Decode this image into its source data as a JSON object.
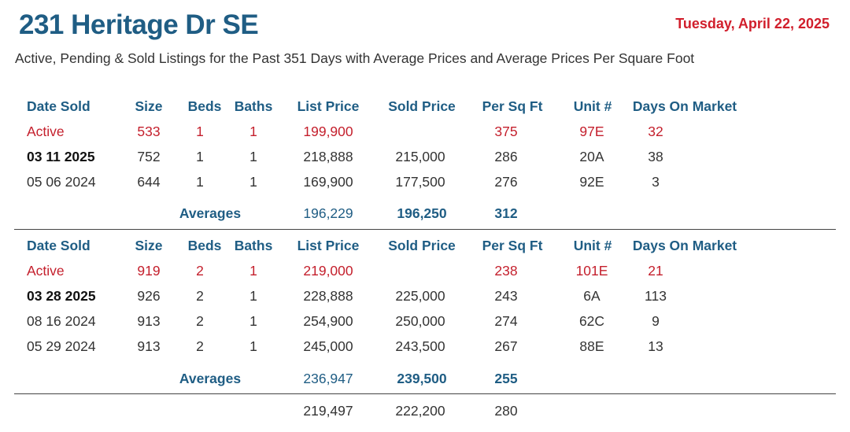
{
  "title": "231 Heritage Dr SE",
  "date": "Tuesday, April 22, 2025",
  "subtitle": "Active, Pending & Sold Listings for the Past 351 Days with Average Prices and Average Prices Per Square Foot",
  "headers": {
    "date_sold": "Date Sold",
    "size": "Size",
    "beds": "Beds",
    "baths": "Baths",
    "list_price": "List Price",
    "sold_price": "Sold Price",
    "per_sq_ft": "Per Sq Ft",
    "unit": "Unit #",
    "days_on_market": "Days On Market"
  },
  "sections": [
    {
      "rows": [
        {
          "date": "Active",
          "size": "533",
          "beds": "1",
          "baths": "1",
          "list": "199,900",
          "sold": "",
          "psf": "375",
          "unit": "97E",
          "dom": "32"
        },
        {
          "date": "03 11 2025",
          "size": "752",
          "beds": "1",
          "baths": "1",
          "list": "218,888",
          "sold": "215,000",
          "psf": "286",
          "unit": "20A",
          "dom": "38"
        },
        {
          "date": "05 06 2024",
          "size": "644",
          "beds": "1",
          "baths": "1",
          "list": "169,900",
          "sold": "177,500",
          "psf": "276",
          "unit": "92E",
          "dom": "3"
        }
      ],
      "averages": {
        "label": "Averages",
        "list": "196,229",
        "sold": "196,250",
        "psf": "312"
      }
    },
    {
      "rows": [
        {
          "date": "Active",
          "size": "919",
          "beds": "2",
          "baths": "1",
          "list": "219,000",
          "sold": "",
          "psf": "238",
          "unit": "101E",
          "dom": "21"
        },
        {
          "date": "03 28 2025",
          "size": "926",
          "beds": "2",
          "baths": "1",
          "list": "228,888",
          "sold": "225,000",
          "psf": "243",
          "unit": "6A",
          "dom": "113"
        },
        {
          "date": "08 16 2024",
          "size": "913",
          "beds": "2",
          "baths": "1",
          "list": "254,900",
          "sold": "250,000",
          "psf": "274",
          "unit": "62C",
          "dom": "9"
        },
        {
          "date": "05 29 2024",
          "size": "913",
          "beds": "2",
          "baths": "1",
          "list": "245,000",
          "sold": "243,500",
          "psf": "267",
          "unit": "88E",
          "dom": "13"
        }
      ],
      "averages": {
        "label": "Averages",
        "list": "236,947",
        "sold": "239,500",
        "psf": "255"
      }
    }
  ],
  "overall": {
    "list": "219,497",
    "sold": "222,200",
    "psf": "280"
  }
}
